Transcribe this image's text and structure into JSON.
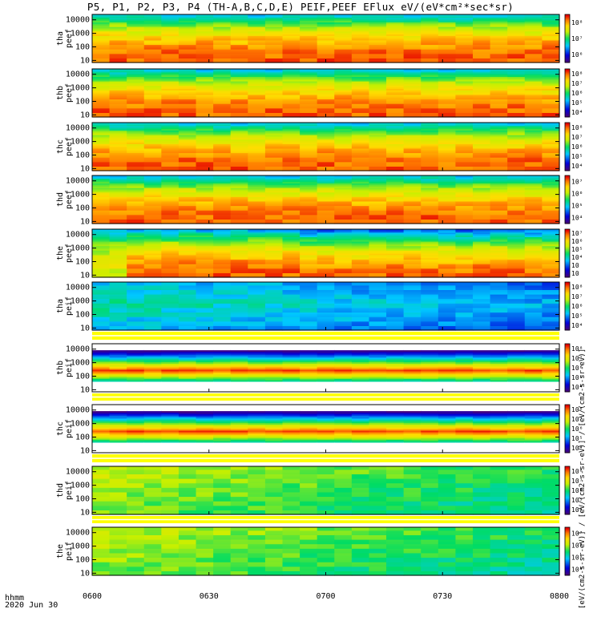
{
  "title": "P5, P1, P2, P3, P4 (TH-A,B,C,D,E) PEIF,PEEF EFlux eV/(eV*cm²*sec*sr)",
  "footer": {
    "line1": "hhmm",
    "line2": "2020 Jun 30"
  },
  "colorbar_units": "[eV/(cm2-s-sr-eV)] / [eV/(cm2-s-sr-eV)] / [eV/(cm2-s-sr-eV)]",
  "colors": {
    "background": "#ffffff",
    "fill_gap": "#ffff00",
    "axis": "#000000"
  },
  "chart_data": {
    "type": "heatmap",
    "title": "P5, P1, P2, P3, P4 (TH-A,B,C,D,E) PEIF,PEEF EFlux eV/(eV*cm²*sec*sr)",
    "x_axis": {
      "label": "hhmm",
      "range": [
        "0600",
        "0800"
      ],
      "ticks": [
        "0600",
        "0630",
        "0700",
        "0730",
        "0800"
      ],
      "date": "2020 Jun 30"
    },
    "y_axis": {
      "scale": "log",
      "range": [
        7,
        25000
      ],
      "ticks": [
        "10",
        "100",
        "1000",
        "10000"
      ],
      "unit": "eV"
    },
    "colormap": "rainbow (purple-blue-cyan-green-yellow-red)",
    "panels": [
      {
        "probe": "tha",
        "product": "peef",
        "ylabel": [
          "tha",
          "peef"
        ],
        "cbar_ticks": [
          "10⁶",
          "10⁷",
          "10⁸"
        ],
        "level": "high"
      },
      {
        "probe": "thb",
        "product": "peef",
        "ylabel": [
          "thb",
          "peef"
        ],
        "cbar_ticks": [
          "10⁴",
          "10⁵",
          "10⁶",
          "10⁷",
          "10⁸"
        ],
        "level": "high"
      },
      {
        "probe": "thc",
        "product": "peef",
        "ylabel": [
          "thc",
          "peef"
        ],
        "cbar_ticks": [
          "10⁴",
          "10⁵",
          "10⁶",
          "10⁷",
          "10⁸"
        ],
        "level": "high"
      },
      {
        "probe": "thd",
        "product": "peef",
        "ylabel": [
          "thd",
          "peef"
        ],
        "cbar_ticks": [
          "10⁴",
          "10⁵",
          "10⁶",
          "10⁷"
        ],
        "level": "high"
      },
      {
        "probe": "the",
        "product": "peef",
        "ylabel": [
          "the",
          "peef"
        ],
        "cbar_ticks": [
          "10⁲",
          "10⁳",
          "10⁴",
          "10⁵",
          "10⁶",
          "10⁷"
        ],
        "level": "high"
      },
      {
        "probe": "tha",
        "product": "peif",
        "ylabel": [
          "tha",
          "peif"
        ],
        "cbar_ticks": [
          "10⁴",
          "10⁵",
          "10⁶",
          "10⁷",
          "10⁸"
        ],
        "level": "low"
      },
      {
        "probe": "thb",
        "product": "peif",
        "ylabel": [
          "thb",
          "peif"
        ],
        "cbar_ticks": [
          "10⁴",
          "10⁵",
          "10⁶",
          "10⁷",
          "10⁸"
        ],
        "level": "band"
      },
      {
        "probe": "thc",
        "product": "peif",
        "ylabel": [
          "thc",
          "peif"
        ],
        "cbar_ticks": [
          "10⁴",
          "10⁵",
          "10⁶",
          "10⁷",
          "10⁸"
        ],
        "level": "band"
      },
      {
        "probe": "thd",
        "product": "peif",
        "ylabel": [
          "thd",
          "peif"
        ],
        "cbar_ticks": [
          "10⁴",
          "10⁵",
          "10⁶",
          "10⁷",
          "10⁸"
        ],
        "level": "mid"
      },
      {
        "probe": "the",
        "product": "peif",
        "ylabel": [
          "the",
          "peif"
        ],
        "cbar_ticks": [
          "10⁴",
          "10⁵",
          "10⁶",
          "10⁷"
        ],
        "level": "mid"
      }
    ]
  }
}
